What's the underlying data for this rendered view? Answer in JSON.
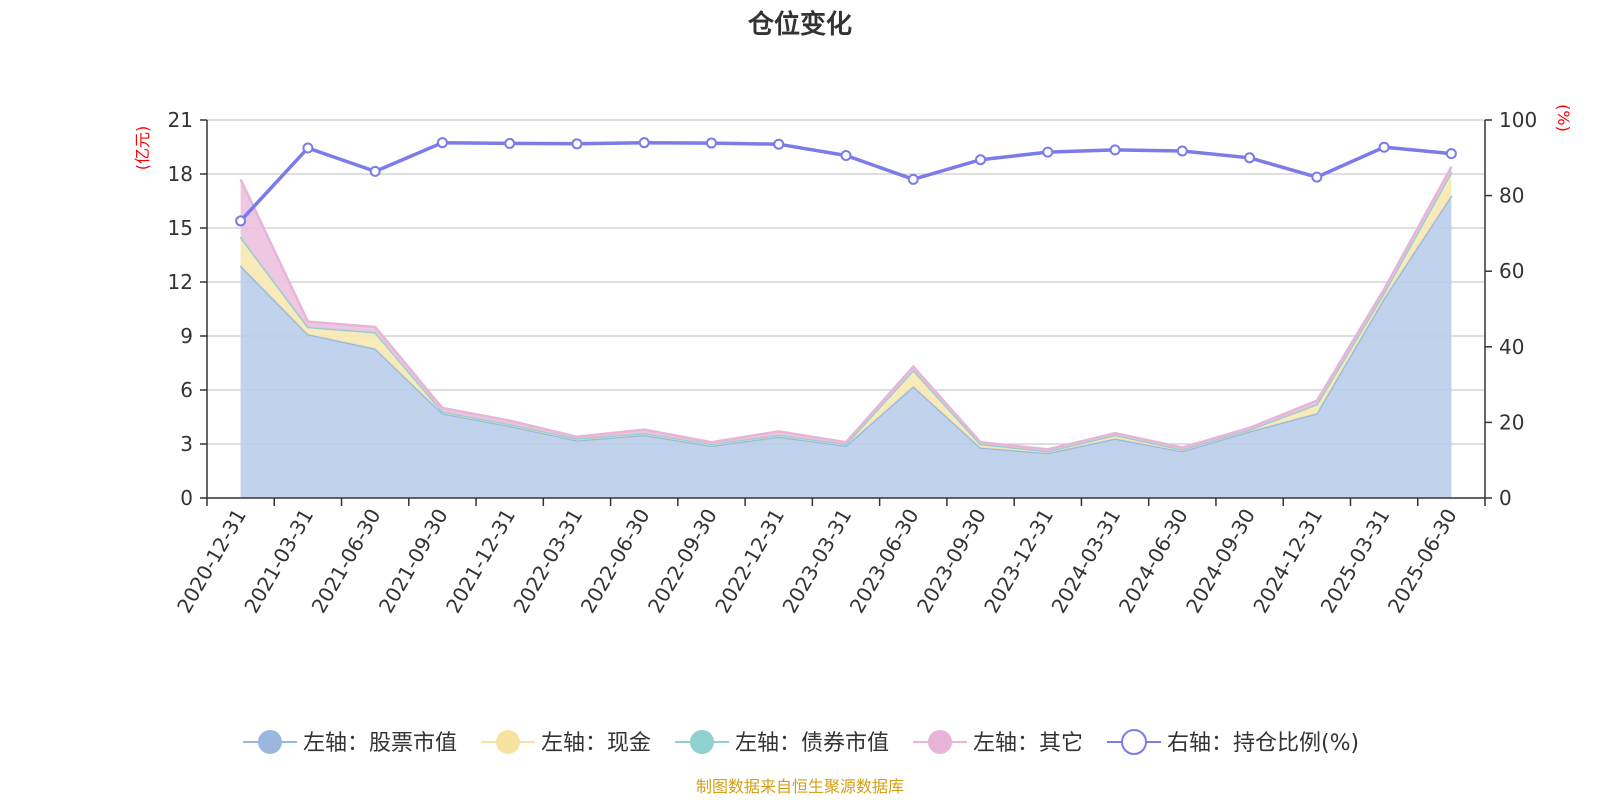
{
  "chart_data": {
    "type": "area",
    "title": "仓位变化",
    "source": "制图数据来自恒生聚源数据库",
    "left_axis": {
      "unit": "(亿元)",
      "min": 0,
      "max": 21,
      "ticks": [
        0,
        3,
        6,
        9,
        12,
        15,
        18,
        21
      ]
    },
    "right_axis": {
      "unit": "(%)",
      "min": 0,
      "max": 100,
      "ticks": [
        0,
        20,
        40,
        60,
        80,
        100
      ]
    },
    "categories": [
      "2020-12-31",
      "2021-03-31",
      "2021-06-30",
      "2021-09-30",
      "2021-12-31",
      "2022-03-31",
      "2022-06-30",
      "2022-09-30",
      "2022-12-31",
      "2023-03-31",
      "2023-06-30",
      "2023-09-30",
      "2023-12-31",
      "2024-03-31",
      "2024-06-30",
      "2024-09-30",
      "2024-12-31",
      "2025-03-31",
      "2025-06-30"
    ],
    "stacked_series": [
      {
        "name": "左轴：股票市值",
        "color": "#9ab7e0",
        "fill": "#b9cdea",
        "values": [
          12.9,
          9.1,
          8.3,
          4.7,
          4.0,
          3.2,
          3.5,
          2.9,
          3.4,
          2.9,
          6.2,
          2.8,
          2.5,
          3.3,
          2.6,
          3.7,
          4.7,
          11.1,
          16.8
        ]
      },
      {
        "name": "左轴：现金",
        "color": "#f7e3a1",
        "fill": "#f8e8b3",
        "values": [
          1.6,
          0.4,
          0.9,
          0.1,
          0.1,
          0.1,
          0.1,
          0.1,
          0.1,
          0.1,
          0.9,
          0.2,
          0.1,
          0.2,
          0.1,
          0.1,
          0.5,
          0.3,
          1.3
        ]
      },
      {
        "name": "左轴：债券市值",
        "color": "#8fd1cf",
        "fill": "#a8dbd9",
        "values": [
          0,
          0,
          0,
          0,
          0,
          0,
          0,
          0,
          0,
          0,
          0,
          0,
          0,
          0,
          0,
          0,
          0,
          0,
          0
        ]
      },
      {
        "name": "左轴：其它",
        "color": "#e8b4d8",
        "fill": "#ecc2df",
        "values": [
          3.2,
          0.3,
          0.3,
          0.2,
          0.2,
          0.1,
          0.2,
          0.1,
          0.2,
          0.1,
          0.2,
          0.1,
          0.1,
          0.1,
          0.1,
          0.1,
          0.2,
          0.2,
          0.3
        ]
      }
    ],
    "line_series": {
      "name": "右轴：持仓比例(%)",
      "color": "#7b7bea",
      "values": [
        73.3,
        92.6,
        86.4,
        94.0,
        93.8,
        93.7,
        94.0,
        93.9,
        93.6,
        90.6,
        84.3,
        89.5,
        91.5,
        92.1,
        91.8,
        90.0,
        84.9,
        92.8,
        91.1
      ]
    },
    "legend": [
      "左轴：股票市值",
      "左轴：现金",
      "左轴：债券市值",
      "左轴：其它",
      "右轴：持仓比例(%)"
    ],
    "legend_position": "bottom-center",
    "grid": true
  }
}
